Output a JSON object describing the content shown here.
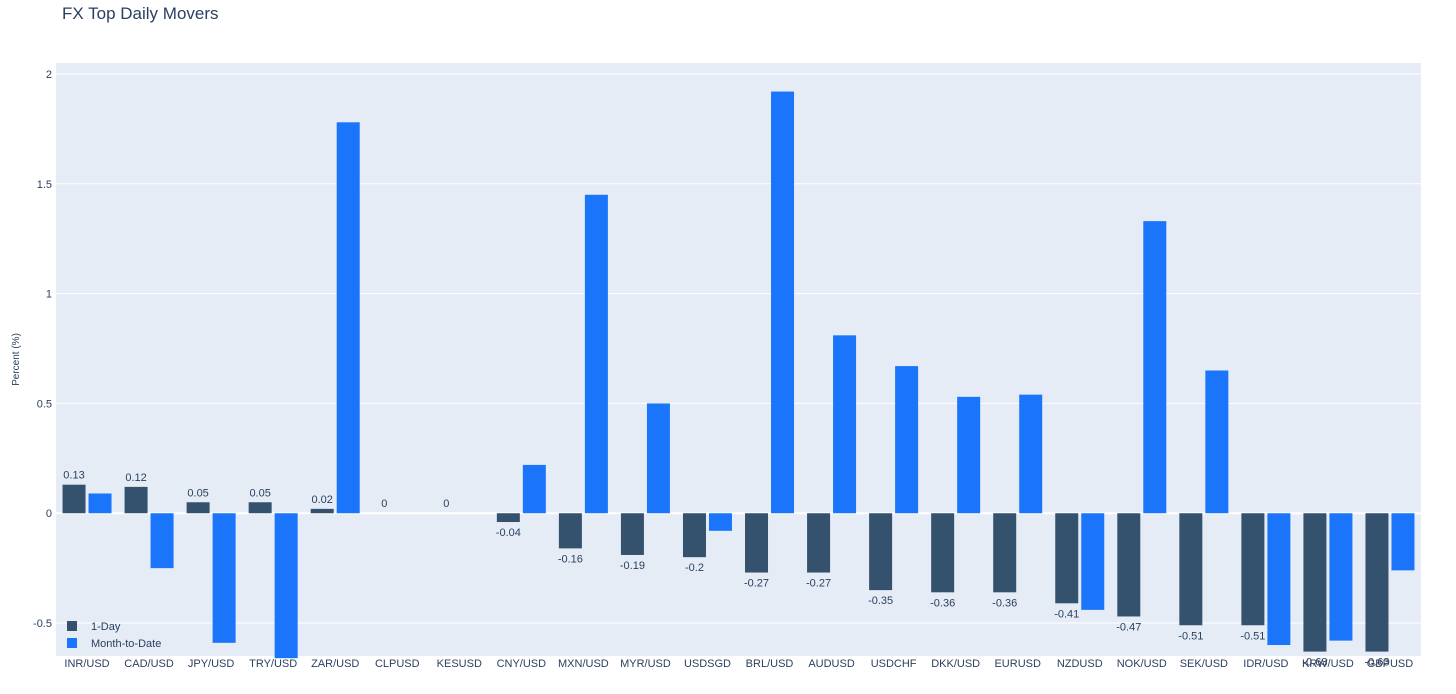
{
  "chart_data": {
    "type": "bar",
    "title": "FX Top Daily Movers",
    "xlabel": "",
    "ylabel": "Percent (%)",
    "ylim": [
      -0.65,
      2.05
    ],
    "yticks": [
      -0.5,
      0,
      0.5,
      1,
      1.5,
      2
    ],
    "ytick_labels": [
      "-0.5",
      "0",
      "0.5",
      "1",
      "1.5",
      "2"
    ],
    "grid": true,
    "legend_position": "bottom-left",
    "categories": [
      "INR/USD",
      "CAD/USD",
      "JPY/USD",
      "TRY/USD",
      "ZAR/USD",
      "CLPUSD",
      "KESUSD",
      "CNY/USD",
      "MXN/USD",
      "MYR/USD",
      "USDSGD",
      "BRL/USD",
      "AUDUSD",
      "USDCHF",
      "DKK/USD",
      "EURUSD",
      "NZDUSD",
      "NOK/USD",
      "SEK/USD",
      "IDR/USD",
      "KRW/USD",
      "GBPUSD"
    ],
    "series": [
      {
        "name": "1-Day",
        "color": "#34526e",
        "values": [
          0.13,
          0.12,
          0.05,
          0.05,
          0.02,
          0,
          0,
          -0.04,
          -0.16,
          -0.19,
          -0.2,
          -0.27,
          -0.27,
          -0.35,
          -0.36,
          -0.36,
          -0.41,
          -0.47,
          -0.51,
          -0.51,
          -0.63,
          -0.63
        ],
        "labels": [
          "0.13",
          "0.12",
          "0.05",
          "0.05",
          "0.02",
          "0",
          "0",
          "-0.04",
          "-0.16",
          "-0.19",
          "-0.2",
          "-0.27",
          "-0.27",
          "-0.35",
          "-0.36",
          "-0.36",
          "-0.41",
          "-0.47",
          "-0.51",
          "-0.51",
          "-0.63",
          "-0.63"
        ]
      },
      {
        "name": "Month-to-Date",
        "color": "#1b75fb",
        "values": [
          0.09,
          -0.25,
          -0.59,
          -0.66,
          1.78,
          0,
          0,
          0.22,
          1.45,
          0.5,
          -0.08,
          1.92,
          0.81,
          0.67,
          0.53,
          0.54,
          -0.44,
          1.33,
          0.65,
          -0.6,
          -0.58,
          -0.26
        ]
      }
    ]
  },
  "colors": {
    "plot_background": "#e5ecf6",
    "grid": "#ffffff",
    "text": "#2a3f5f"
  }
}
